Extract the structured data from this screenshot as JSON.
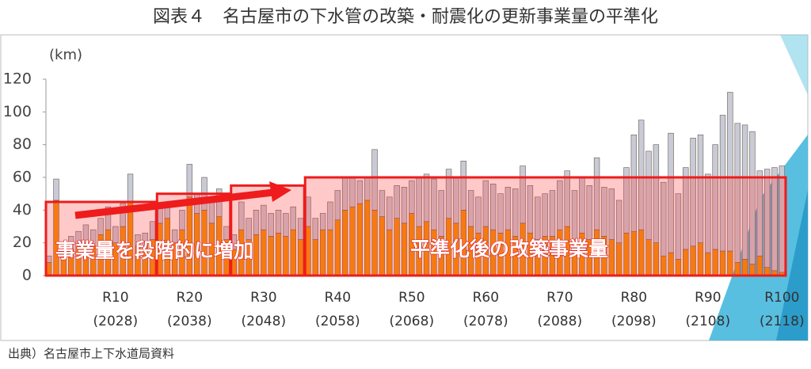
{
  "chart_data": {
    "type": "stacked_bar",
    "title": "図表４　名古屋市の下水管の改築・耐震化の更新事業量の平準化",
    "y_label": "(km)",
    "source": "出典）名古屋市上下水道局資料",
    "annotations": [
      "事業量を段階的に増加",
      "平準化後の改築事業量"
    ],
    "categories": [
      null,
      null,
      null,
      null,
      null,
      null,
      null,
      null,
      null,
      "R10",
      null,
      null,
      null,
      null,
      null,
      null,
      null,
      null,
      null,
      "R20",
      null,
      null,
      null,
      null,
      null,
      null,
      null,
      null,
      null,
      "R30",
      null,
      null,
      null,
      null,
      null,
      null,
      null,
      null,
      null,
      "R40",
      null,
      null,
      null,
      null,
      null,
      null,
      null,
      null,
      null,
      "R50",
      null,
      null,
      null,
      null,
      null,
      null,
      null,
      null,
      null,
      "R60",
      null,
      null,
      null,
      null,
      null,
      null,
      null,
      null,
      null,
      "R70",
      null,
      null,
      null,
      null,
      null,
      null,
      null,
      null,
      null,
      "R80",
      null,
      null,
      null,
      null,
      null,
      null,
      null,
      null,
      null,
      "R90",
      null,
      null,
      null,
      null,
      null,
      null,
      null,
      null,
      null,
      "R100"
    ],
    "category_years": [
      null,
      null,
      null,
      null,
      null,
      null,
      null,
      null,
      null,
      "(2028)",
      null,
      null,
      null,
      null,
      null,
      null,
      null,
      null,
      null,
      "(2038)",
      null,
      null,
      null,
      null,
      null,
      null,
      null,
      null,
      null,
      "(2048)",
      null,
      null,
      null,
      null,
      null,
      null,
      null,
      null,
      null,
      "(2058)",
      null,
      null,
      null,
      null,
      null,
      null,
      null,
      null,
      null,
      "(2068)",
      null,
      null,
      null,
      null,
      null,
      null,
      null,
      null,
      null,
      "(2078)",
      null,
      null,
      null,
      null,
      null,
      null,
      null,
      null,
      null,
      "(2088)",
      null,
      null,
      null,
      null,
      null,
      null,
      null,
      null,
      null,
      "(2098)",
      null,
      null,
      null,
      null,
      null,
      null,
      null,
      null,
      null,
      "(2108)",
      null,
      null,
      null,
      null,
      null,
      null,
      null,
      null,
      null,
      "(2118)"
    ],
    "series": [
      {
        "color": "#f39200",
        "values": [
          8,
          46,
          12,
          16,
          18,
          20,
          18,
          25,
          28,
          20,
          30,
          45,
          18,
          18,
          22,
          32,
          35,
          20,
          28,
          48,
          38,
          40,
          32,
          36,
          22,
          16,
          28,
          22,
          25,
          28,
          24,
          26,
          24,
          28,
          22,
          30,
          22,
          28,
          28,
          34,
          40,
          42,
          44,
          46,
          40,
          36,
          28,
          35,
          32,
          38,
          30,
          33,
          28,
          24,
          35,
          32,
          40,
          30,
          26,
          30,
          28,
          26,
          28,
          24,
          32,
          26,
          22,
          24,
          24,
          28,
          30,
          22,
          26,
          22,
          28,
          24,
          22,
          20,
          26,
          27,
          28,
          22,
          20,
          12,
          14,
          10,
          16,
          18,
          20,
          14,
          16,
          15,
          15,
          8,
          10,
          7,
          12,
          5,
          3,
          2
        ]
      },
      {
        "color": "#c8cbd6",
        "values": [
          4,
          13,
          8,
          8,
          9,
          11,
          10,
          10,
          14,
          10,
          14,
          17,
          7,
          8,
          11,
          12,
          10,
          8,
          12,
          20,
          12,
          20,
          13,
          17,
          8,
          9,
          17,
          13,
          15,
          15,
          14,
          14,
          14,
          14,
          13,
          18,
          13,
          10,
          17,
          18,
          20,
          18,
          14,
          14,
          37,
          16,
          20,
          20,
          22,
          20,
          30,
          29,
          31,
          28,
          30,
          28,
          30,
          22,
          22,
          28,
          28,
          24,
          26,
          29,
          35,
          29,
          26,
          26,
          28,
          30,
          34,
          30,
          34,
          33,
          44,
          30,
          31,
          26,
          40,
          59,
          67,
          54,
          60,
          45,
          73,
          40,
          50,
          66,
          66,
          48,
          64,
          83,
          97,
          85,
          82,
          81,
          52,
          60,
          63,
          65
        ]
      }
    ],
    "steps": [
      {
        "start": 0,
        "end": 14,
        "value": 45
      },
      {
        "start": 15,
        "end": 24,
        "value": 50
      },
      {
        "start": 25,
        "end": 34,
        "value": 55
      },
      {
        "start": 35,
        "end": 99,
        "value": 60
      }
    ],
    "ylim": [
      0,
      120
    ],
    "yticks": [
      0,
      20,
      40,
      60,
      80,
      100,
      120
    ]
  }
}
